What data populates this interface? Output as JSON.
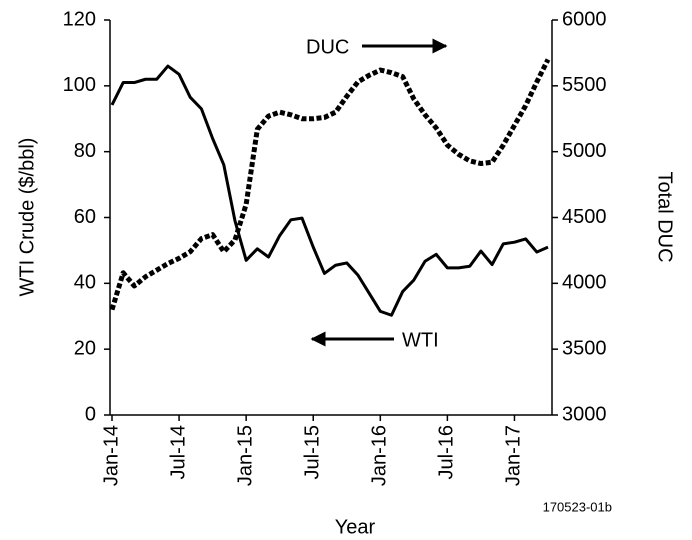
{
  "chart_data": {
    "type": "line",
    "x_label": "Year",
    "y_label": "WTI Crude ($/bbl)",
    "y2_label": "Total DUC",
    "annotations": [
      "DUC",
      "WTI"
    ],
    "note": "170523-01b",
    "x": [
      "2014-01",
      "2014-02",
      "2014-03",
      "2014-04",
      "2014-05",
      "2014-06",
      "2014-07",
      "2014-08",
      "2014-09",
      "2014-10",
      "2014-11",
      "2014-12",
      "2015-01",
      "2015-02",
      "2015-03",
      "2015-04",
      "2015-05",
      "2015-06",
      "2015-07",
      "2015-08",
      "2015-09",
      "2015-10",
      "2015-11",
      "2015-12",
      "2016-01",
      "2016-02",
      "2016-03",
      "2016-04",
      "2016-05",
      "2016-06",
      "2016-07",
      "2016-08",
      "2016-09",
      "2016-10",
      "2016-11",
      "2016-12",
      "2017-01",
      "2017-02",
      "2017-03",
      "2017-04"
    ],
    "series": [
      {
        "name": "WTI",
        "color": "#000000",
        "line_style": "solid",
        "axis": "y",
        "values": [
          94.2,
          101,
          101,
          102,
          102,
          106,
          103.5,
          96.5,
          93,
          84,
          76,
          59,
          47,
          50.5,
          48,
          54.5,
          59.3,
          59.8,
          51,
          43,
          45.5,
          46.2,
          42.5,
          37,
          31.5,
          30.3,
          37.5,
          41,
          46.7,
          48.8,
          44.7,
          44.7,
          45.2,
          49.8,
          45.7,
          52,
          52.5,
          53.5,
          49.5,
          51
        ]
      },
      {
        "name": "DUC",
        "color": "#000000",
        "line_style": "dashed",
        "axis": "y2",
        "values": [
          3800,
          4080,
          3980,
          4050,
          4100,
          4150,
          4190,
          4240,
          4340,
          4370,
          4240,
          4330,
          4600,
          5170,
          5270,
          5300,
          5280,
          5250,
          5250,
          5260,
          5300,
          5420,
          5530,
          5580,
          5620,
          5600,
          5570,
          5400,
          5280,
          5180,
          5050,
          4980,
          4930,
          4910,
          4920,
          5050,
          5200,
          5350,
          5530,
          5700
        ]
      }
    ],
    "xlim": [
      "2014-01",
      "2017-04"
    ],
    "xticks": [
      {
        "value": "2014-01",
        "label": "Jan-14"
      },
      {
        "value": "2014-07",
        "label": "Jul-14"
      },
      {
        "value": "2015-01",
        "label": "Jan-15"
      },
      {
        "value": "2015-07",
        "label": "Jul-15"
      },
      {
        "value": "2016-01",
        "label": "Jan-16"
      },
      {
        "value": "2016-07",
        "label": "Jul-16"
      },
      {
        "value": "2017-01",
        "label": "Jan-17"
      }
    ],
    "ylim": [
      0,
      120
    ],
    "yticks": [
      0,
      20,
      40,
      60,
      80,
      100,
      120
    ],
    "y2lim": [
      3000,
      6000
    ],
    "y2ticks": [
      3000,
      3500,
      4000,
      4500,
      5000,
      5500,
      6000
    ]
  }
}
